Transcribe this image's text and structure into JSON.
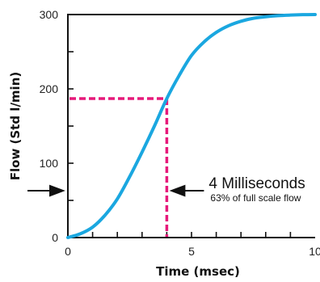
{
  "chart_data": {
    "type": "line",
    "title": "",
    "xlabel": "Time (msec)",
    "ylabel": "Flow (Std l/min)",
    "xlim": [
      0,
      10
    ],
    "ylim": [
      0,
      300
    ],
    "x_ticks": [
      "0",
      "5",
      "10"
    ],
    "y_ticks": [
      "0",
      "100",
      "200",
      "300"
    ],
    "grid": false,
    "series": [
      {
        "color": "#1aa7e0",
        "x": [
          0,
          0.5,
          1,
          1.5,
          2,
          2.5,
          3,
          3.5,
          4,
          4.5,
          5,
          5.5,
          6,
          6.5,
          7,
          7.5,
          8,
          8.5,
          9,
          9.5,
          10
        ],
        "y": [
          0,
          5,
          14,
          30,
          52,
          82,
          115,
          150,
          187,
          218,
          245,
          263,
          276,
          285,
          291,
          295,
          297,
          298.5,
          299.3,
          299.8,
          300
        ]
      }
    ],
    "marker": {
      "x": 4,
      "y": 187,
      "color": "#e6197a"
    },
    "annotation": {
      "text": "4 Milliseconds",
      "subtext": "63% of full scale flow",
      "arrow_y_value": 63
    }
  }
}
